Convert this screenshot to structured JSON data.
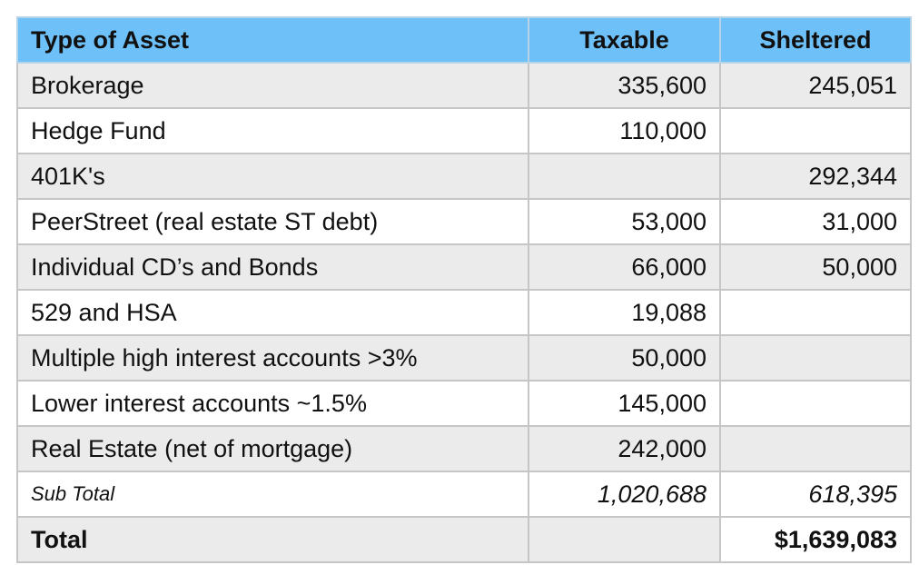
{
  "headers": {
    "type_of_asset": "Type of Asset",
    "taxable": "Taxable",
    "sheltered": "Sheltered"
  },
  "rows": [
    {
      "asset": "Brokerage",
      "taxable": "335,600",
      "sheltered": "245,051"
    },
    {
      "asset": "Hedge Fund",
      "taxable": "110,000",
      "sheltered": ""
    },
    {
      "asset": "401K's",
      "taxable": "",
      "sheltered": "292,344"
    },
    {
      "asset": "PeerStreet (real estate ST debt)",
      "taxable": "53,000",
      "sheltered": "31,000"
    },
    {
      "asset": "Individual CD’s and Bonds",
      "taxable": "66,000",
      "sheltered": "50,000"
    },
    {
      "asset": "529 and HSA",
      "taxable": "19,088",
      "sheltered": ""
    },
    {
      "asset": "Multiple high interest accounts >3%",
      "taxable": "50,000",
      "sheltered": ""
    },
    {
      "asset": "Lower interest accounts ~1.5%",
      "taxable": "145,000",
      "sheltered": ""
    },
    {
      "asset": "Real Estate (net of mortgage)",
      "taxable": "242,000",
      "sheltered": ""
    }
  ],
  "subtotal": {
    "label": "Sub Total",
    "taxable": "1,020,688",
    "sheltered": "618,395"
  },
  "total": {
    "label": "Total",
    "value": "$1,639,083"
  },
  "colors": {
    "header_bg": "#6ec0f8",
    "row_shade": "#ebebeb",
    "grid": "#c6c6c6"
  }
}
